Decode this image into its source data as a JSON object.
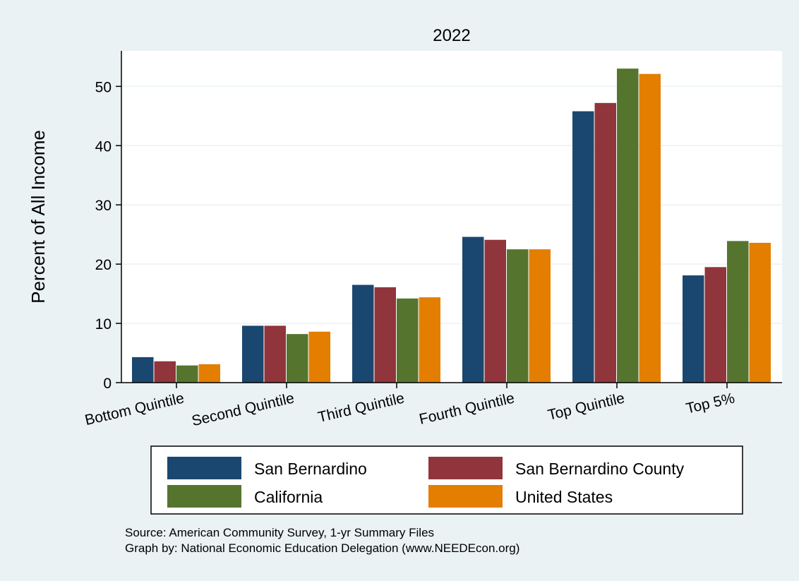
{
  "chart_data": {
    "type": "bar",
    "title": "2022",
    "ylabel": "Percent of All Income",
    "xlabel": "",
    "ylim": [
      0,
      56
    ],
    "yticks": [
      0,
      10,
      20,
      30,
      40,
      50
    ],
    "grid": true,
    "legend_position": "bottom",
    "categories": [
      "Bottom Quintile",
      "Second Quintile",
      "Third Quintile",
      "Fourth Quintile",
      "Top Quintile",
      "Top 5%"
    ],
    "series": [
      {
        "name": "San Bernardino",
        "color": "#1a476f",
        "values": [
          4.3,
          9.6,
          16.5,
          24.6,
          45.8,
          18.1
        ]
      },
      {
        "name": "San Bernardino County",
        "color": "#90353b",
        "values": [
          3.6,
          9.6,
          16.1,
          24.1,
          47.2,
          19.5
        ]
      },
      {
        "name": "California",
        "color": "#55752f",
        "values": [
          2.9,
          8.2,
          14.2,
          22.5,
          53.0,
          23.9
        ]
      },
      {
        "name": "United States",
        "color": "#e37e00",
        "values": [
          3.1,
          8.6,
          14.4,
          22.5,
          52.1,
          23.6
        ]
      }
    ]
  },
  "notes": {
    "source": "Source: American Community Survey, 1-yr Summary Files",
    "credit": "Graph by: National Economic Education Delegation (www.NEEDEcon.org)"
  }
}
